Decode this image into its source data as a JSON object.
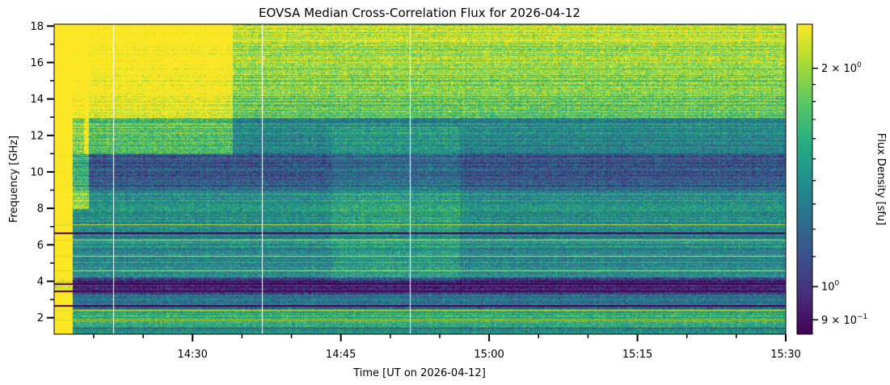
{
  "chart_data": {
    "type": "heatmap",
    "title": "EOVSA Median Cross-Correlation Flux for 2026-04-12",
    "xlabel": "Time [UT on 2026-04-12]",
    "ylabel": "Frequency [GHz]",
    "colorbar_label": "Flux Density [sfu]",
    "colormap": "viridis",
    "colorbar_scale": "log",
    "colorbar_range": [
      0.86,
      2.3
    ],
    "colorbar_ticks": [
      {
        "value": 2.0,
        "base": "2",
        "exp": "0"
      },
      {
        "value": 1.0,
        "base": "10",
        "exp": "0"
      },
      {
        "value": 0.9,
        "base": "9",
        "exp": "−1"
      }
    ],
    "colorbar_tick_prefix": "× ",
    "x_range_minutes": [
      1276,
      1350
    ],
    "x_ticks": [
      {
        "minute": 1290,
        "label": "14:30"
      },
      {
        "minute": 1305,
        "label": "14:45"
      },
      {
        "minute": 1320,
        "label": "15:00"
      },
      {
        "minute": 1335,
        "label": "15:15"
      },
      {
        "minute": 1350,
        "label": "15:30"
      }
    ],
    "x_minor_step_minutes": 5,
    "y_range": [
      1.1,
      18.1
    ],
    "y_ticks": [
      2,
      4,
      6,
      8,
      10,
      12,
      14,
      16,
      18
    ],
    "gap_times_minutes": [
      1282.0,
      1297.0,
      1312.0
    ]
  }
}
